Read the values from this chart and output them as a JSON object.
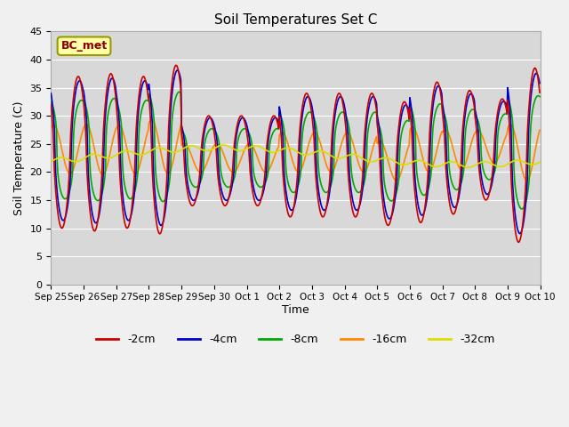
{
  "title": "Soil Temperatures Set C",
  "xlabel": "Time",
  "ylabel": "Soil Temperature (C)",
  "ylim": [
    0,
    45
  ],
  "yticks": [
    0,
    5,
    10,
    15,
    20,
    25,
    30,
    35,
    40,
    45
  ],
  "x_labels": [
    "Sep 25",
    "Sep 26",
    "Sep 27",
    "Sep 28",
    "Sep 29",
    "Sep 30",
    "Oct 1",
    "Oct 2",
    "Oct 3",
    "Oct 4",
    "Oct 5",
    "Oct 6",
    "Oct 7",
    "Oct 8",
    "Oct 9",
    "Oct 10"
  ],
  "series_labels": [
    "-2cm",
    "-4cm",
    "-8cm",
    "-16cm",
    "-32cm"
  ],
  "series_colors": [
    "#cc0000",
    "#0000cc",
    "#00aa00",
    "#ff8800",
    "#dddd00"
  ],
  "annotation_text": "BC_met",
  "background_color": "#d8d8d8",
  "plot_bg_color": "#d8d8d8",
  "grid_color": "#ffffff",
  "days": 15,
  "pts_per_day": 48
}
